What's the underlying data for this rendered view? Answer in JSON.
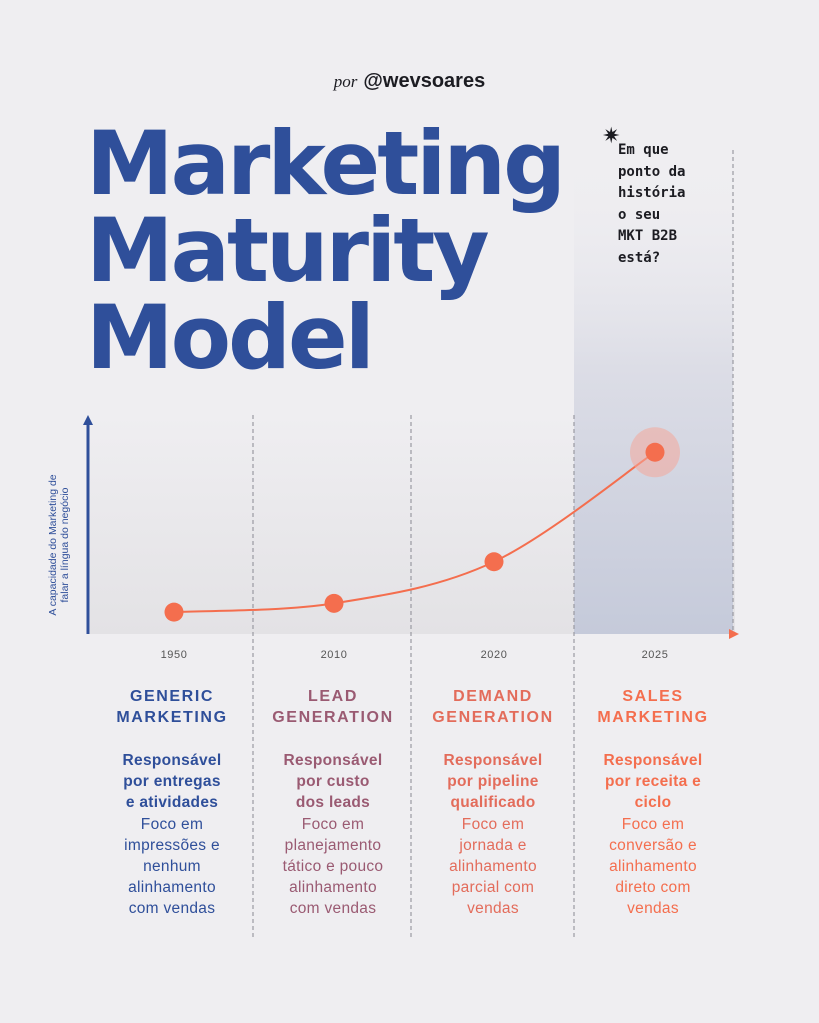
{
  "byline": {
    "prefix": "por",
    "handle": "@wevsoares"
  },
  "title": [
    "Marketing",
    "Maturity",
    "Model"
  ],
  "note": {
    "star": "✷",
    "lines": [
      "Em que",
      "ponto da",
      "história",
      "o seu",
      "MKT B2B",
      "está?"
    ]
  },
  "colors": {
    "primary_blue": "#2f4f9a",
    "mauve": "#9a5a72",
    "coral": "#e36c5b",
    "orange": "#f46e4e",
    "background": "#efeef1"
  },
  "chart_data": {
    "type": "line",
    "ylabel": "A capacidade do Marketing de falar a língua do negócio",
    "ylabel_lines": [
      "A capacidade do Marketing de",
      "falar a língua do negócio"
    ],
    "categories": [
      "1950",
      "2010",
      "2020",
      "2025"
    ],
    "values": [
      1,
      1.4,
      3.3,
      8.3
    ],
    "ylim": [
      0,
      10
    ],
    "grid": false,
    "highlighted_category": "2025"
  },
  "stages": [
    {
      "title": [
        "GENERIC",
        "MARKETING"
      ],
      "strong": [
        "Responsável",
        "por entregas",
        "e atividades"
      ],
      "detail": [
        "Foco em",
        "impressões e",
        "nenhum",
        "alinhamento",
        "com vendas"
      ],
      "color": "#2f4f9a"
    },
    {
      "title": [
        "LEAD",
        "GENERATION"
      ],
      "strong": [
        "Responsável",
        "por custo",
        "dos leads"
      ],
      "detail": [
        "Foco em",
        "planejamento",
        "tático e pouco",
        "alinhamento",
        "com vendas"
      ],
      "color": "#9a5a72"
    },
    {
      "title": [
        "DEMAND",
        "GENERATION"
      ],
      "strong": [
        "Responsável",
        "por pipeline",
        "qualificado"
      ],
      "detail": [
        "Foco em",
        "jornada e",
        "alinhamento",
        "parcial com",
        "vendas"
      ],
      "color": "#e36c5b"
    },
    {
      "title": [
        "SALES",
        "MARKETING"
      ],
      "strong": [
        "Responsável",
        "por receita e",
        "ciclo"
      ],
      "detail": [
        "Foco em",
        "conversão e",
        "alinhamento",
        "direto com",
        "vendas"
      ],
      "color": "#f46e4e"
    }
  ]
}
